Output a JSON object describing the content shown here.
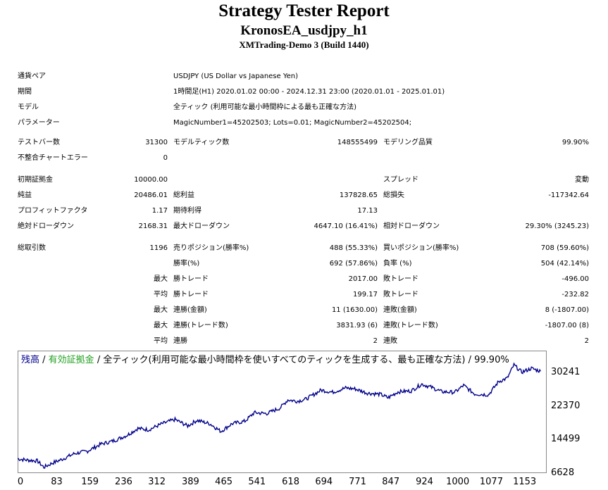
{
  "header": {
    "title": "Strategy Tester Report",
    "ea_name": "KronosEA_usdjpy_h1",
    "server": "XMTrading-Demo 3 (Build 1440)"
  },
  "info": {
    "pair_label": "通貨ペア",
    "pair_value": "USDJPY (US Dollar vs Japanese Yen)",
    "period_label": "期間",
    "period_value": "1時間足(H1) 2020.01.02 00:00 - 2024.12.31 23:00 (2020.01.01 - 2025.01.01)",
    "model_label": "モデル",
    "model_value": "全ティック (利用可能な最小時間枠による最も正確な方法)",
    "params_label": "パラメーター",
    "params_value": "MagicNumber1=45202503; Lots=0.01; MagicNumber2=45202504;"
  },
  "stats": {
    "bars_label": "テストバー数",
    "bars_value": "31300",
    "ticks_label": "モデルティック数",
    "ticks_value": "148555499",
    "quality_label": "モデリング品質",
    "quality_value": "99.90%",
    "mismatch_label": "不整合チャートエラー",
    "mismatch_value": "0",
    "deposit_label": "初期証拠金",
    "deposit_value": "10000.00",
    "spread_label": "スプレッド",
    "spread_value": "変動",
    "net_label": "純益",
    "net_value": "20486.01",
    "gross_profit_label": "総利益",
    "gross_profit_value": "137828.65",
    "gross_loss_label": "総損失",
    "gross_loss_value": "-117342.64",
    "pf_label": "プロフィットファクタ",
    "pf_value": "1.17",
    "expected_label": "期待利得",
    "expected_value": "17.13",
    "abs_dd_label": "絶対ドローダウン",
    "abs_dd_value": "2168.31",
    "max_dd_label": "最大ドローダウン",
    "max_dd_value": "4647.10 (16.41%)",
    "rel_dd_label": "相対ドローダウン",
    "rel_dd_value": "29.30% (3245.23)",
    "trades_label": "総取引数",
    "trades_value": "1196",
    "short_label": "売りポジション(勝率%)",
    "short_value": "488 (55.33%)",
    "long_label": "買いポジション(勝率%)",
    "long_value": "708 (59.60%)",
    "win_label": "勝率(%)",
    "win_value": "692 (57.86%)",
    "loss_label": "負率 (%)",
    "loss_value": "504 (42.14%)",
    "max_word": "最大",
    "avg_word": "平均",
    "largest_win_label": "勝トレード",
    "largest_win_value": "2017.00",
    "largest_loss_label": "敗トレード",
    "largest_loss_value": "-496.00",
    "avg_win_label": "勝トレード",
    "avg_win_value": "199.17",
    "avg_loss_label": "敗トレード",
    "avg_loss_value": "-232.82",
    "max_consec_wins_label": "連勝(金額)",
    "max_consec_wins_value": "11 (1630.00)",
    "max_consec_losses_label": "連敗(金額)",
    "max_consec_losses_value": "8 (-1807.00)",
    "max_consec_profit_label": "連勝(トレード数)",
    "max_consec_profit_value": "3831.93 (6)",
    "max_consec_loss_label": "連敗(トレード数)",
    "max_consec_loss_value": "-1807.00 (8)",
    "avg_consec_wins_label": "連勝",
    "avg_consec_wins_value": "2",
    "avg_consec_losses_label": "連敗",
    "avg_consec_losses_value": "2"
  },
  "chart_legend": {
    "balance": "残高",
    "sep1": " / ",
    "equity": "有効証拠金",
    "rest": " / 全ティック(利用可能な最小時間枠を使いすべてのティックを生成する、最も正確な方法) / 99.90%",
    "balance_color": "#00008b",
    "equity_color": "#22a022"
  },
  "chart_data": {
    "type": "line",
    "ylim": [
      6628,
      34000
    ],
    "yticks": [
      "30241",
      "22370",
      "14499",
      "6628"
    ],
    "xticks": [
      "0",
      "83",
      "159",
      "236",
      "312",
      "389",
      "465",
      "541",
      "618",
      "694",
      "771",
      "847",
      "924",
      "1000",
      "1077",
      "1153"
    ],
    "series": [
      {
        "color": "#00008b",
        "x": [
          0,
          20,
          45,
          60,
          80,
          100,
          130,
          160,
          190,
          220,
          250,
          275,
          300,
          330,
          360,
          389,
          410,
          440,
          465,
          490,
          520,
          541,
          570,
          600,
          618,
          640,
          660,
          694,
          720,
          750,
          771,
          800,
          830,
          847,
          870,
          900,
          924,
          945,
          970,
          1000,
          1020,
          1045,
          1077,
          1100,
          1120,
          1135,
          1153,
          1175,
          1196
        ],
        "y": [
          10000,
          9700,
          9500,
          8000,
          9000,
          9800,
          11200,
          11800,
          13400,
          14200,
          15500,
          17100,
          16800,
          18200,
          19200,
          17700,
          19000,
          18200,
          16400,
          18200,
          18800,
          20800,
          20600,
          21900,
          23800,
          23500,
          24000,
          26100,
          25600,
          26600,
          26400,
          25400,
          25100,
          24300,
          25700,
          25900,
          27500,
          26800,
          25700,
          25600,
          27200,
          25200,
          25000,
          28100,
          28900,
          32000,
          30300,
          31200,
          30500
        ]
      }
    ]
  }
}
